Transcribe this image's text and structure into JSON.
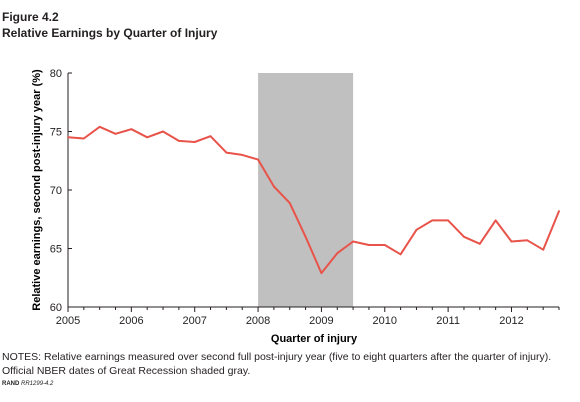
{
  "figure": {
    "label": "Figure 4.2",
    "title": "Relative Earnings by Quarter of Injury"
  },
  "notes": "NOTES: Relative earnings measured over second full post-injury year (five to eight quarters after the quarter of injury). Official NBER dates of Great Recession shaded gray.",
  "credit": {
    "org": "RAND",
    "code": "RR1299-4.2"
  },
  "chart_data": {
    "type": "line",
    "title": "Relative Earnings by Quarter of Injury",
    "xlabel": "Quarter of injury",
    "ylabel": "Relative earnings, second post-injury year (%)",
    "xlim": [
      2005,
      2012.75
    ],
    "ylim": [
      60,
      80
    ],
    "x_ticks": [
      "2005",
      "2006",
      "2007",
      "2008",
      "2009",
      "2010",
      "2011",
      "2012"
    ],
    "y_ticks": [
      "60",
      "65",
      "70",
      "75",
      "80"
    ],
    "grid": false,
    "shaded_region": {
      "from": 2008,
      "to": 2009.5,
      "color": "#c0c0c0",
      "meaning": "Great Recession (NBER)"
    },
    "line_color": "#e8534a",
    "series": [
      {
        "x": [
          2005,
          2005.25,
          2005.5,
          2005.75,
          2006,
          2006.25,
          2006.5,
          2006.75,
          2007,
          2007.25,
          2007.5,
          2007.75,
          2008,
          2008.25,
          2008.5,
          2008.75,
          2009,
          2009.25,
          2009.5,
          2009.75,
          2010,
          2010.25,
          2010.5,
          2010.75,
          2011,
          2011.25,
          2011.5,
          2011.75,
          2012,
          2012.25,
          2012.5,
          2012.75
        ],
        "values": [
          74.5,
          74.4,
          75.4,
          74.8,
          75.2,
          74.5,
          75.0,
          74.2,
          74.1,
          74.6,
          73.2,
          73.0,
          72.6,
          70.3,
          68.9,
          66.0,
          62.9,
          64.6,
          65.6,
          65.3,
          65.3,
          64.5,
          66.6,
          67.4,
          67.4,
          66.0,
          65.4,
          67.4,
          65.6,
          65.7,
          64.9,
          68.2
        ]
      }
    ]
  }
}
